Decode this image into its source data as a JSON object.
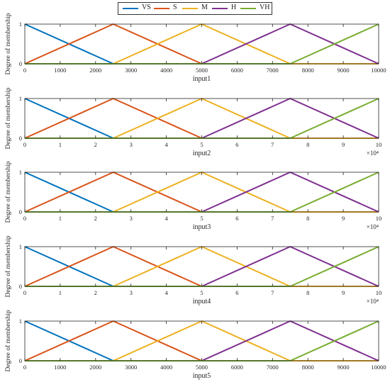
{
  "legend": {
    "entries": [
      {
        "label": "VS",
        "color": "#0072BD"
      },
      {
        "label": "S",
        "color": "#D95319"
      },
      {
        "label": "M",
        "color": "#EDB120"
      },
      {
        "label": "H",
        "color": "#7E2F8E"
      },
      {
        "label": "VH",
        "color": "#77AC30"
      }
    ],
    "placement": "top-center"
  },
  "chart_data": [
    {
      "type": "line",
      "xlabel": "input1",
      "ylabel": "Degree of membership",
      "xlim": [
        0,
        10000
      ],
      "ylim": [
        0,
        1
      ],
      "xticks": [
        "0",
        "1000",
        "2000",
        "3000",
        "4000",
        "5000",
        "6000",
        "7000",
        "8000",
        "9000",
        "10000"
      ],
      "yticks": [
        "0",
        "1"
      ],
      "exponent": "",
      "series": [
        {
          "name": "VS",
          "x": [
            0,
            2500,
            10000
          ],
          "y": [
            1,
            0,
            0
          ]
        },
        {
          "name": "S",
          "x": [
            0,
            2500,
            5000,
            10000
          ],
          "y": [
            0,
            1,
            0,
            0
          ]
        },
        {
          "name": "M",
          "x": [
            0,
            2500,
            5000,
            7500,
            10000
          ],
          "y": [
            0,
            0,
            1,
            0,
            0
          ]
        },
        {
          "name": "H",
          "x": [
            0,
            5000,
            7500,
            10000
          ],
          "y": [
            0,
            0,
            1,
            0
          ]
        },
        {
          "name": "VH",
          "x": [
            0,
            7500,
            10000
          ],
          "y": [
            0,
            0,
            1
          ]
        }
      ]
    },
    {
      "type": "line",
      "xlabel": "input2",
      "ylabel": "Degree of membership",
      "xlim": [
        0,
        10
      ],
      "ylim": [
        0,
        1
      ],
      "xticks": [
        "0",
        "1",
        "2",
        "3",
        "4",
        "5",
        "6",
        "7",
        "8",
        "9",
        "10"
      ],
      "yticks": [
        "0",
        "1"
      ],
      "exponent": "×10⁴",
      "series": [
        {
          "name": "VS",
          "x": [
            0,
            2.5,
            10
          ],
          "y": [
            1,
            0,
            0
          ]
        },
        {
          "name": "S",
          "x": [
            0,
            2.5,
            5,
            10
          ],
          "y": [
            0,
            1,
            0,
            0
          ]
        },
        {
          "name": "M",
          "x": [
            0,
            2.5,
            5,
            7.5,
            10
          ],
          "y": [
            0,
            0,
            1,
            0,
            0
          ]
        },
        {
          "name": "H",
          "x": [
            0,
            5,
            7.5,
            10
          ],
          "y": [
            0,
            0,
            1,
            0
          ]
        },
        {
          "name": "VH",
          "x": [
            0,
            7.5,
            10
          ],
          "y": [
            0,
            0,
            1
          ]
        }
      ]
    },
    {
      "type": "line",
      "xlabel": "input3",
      "ylabel": "Degree of membership",
      "xlim": [
        0,
        10
      ],
      "ylim": [
        0,
        1
      ],
      "xticks": [
        "0",
        "1",
        "2",
        "3",
        "4",
        "5",
        "6",
        "7",
        "8",
        "9",
        "10"
      ],
      "yticks": [
        "0",
        "1"
      ],
      "exponent": "×10⁴",
      "series": [
        {
          "name": "VS",
          "x": [
            0,
            2.5,
            10
          ],
          "y": [
            1,
            0,
            0
          ]
        },
        {
          "name": "S",
          "x": [
            0,
            2.5,
            5,
            10
          ],
          "y": [
            0,
            1,
            0,
            0
          ]
        },
        {
          "name": "M",
          "x": [
            0,
            2.5,
            5,
            7.5,
            10
          ],
          "y": [
            0,
            0,
            1,
            0,
            0
          ]
        },
        {
          "name": "H",
          "x": [
            0,
            5,
            7.5,
            10
          ],
          "y": [
            0,
            0,
            1,
            0
          ]
        },
        {
          "name": "VH",
          "x": [
            0,
            7.5,
            10
          ],
          "y": [
            0,
            0,
            1
          ]
        }
      ]
    },
    {
      "type": "line",
      "xlabel": "input4",
      "ylabel": "Degree of membership",
      "xlim": [
        0,
        10
      ],
      "ylim": [
        0,
        1
      ],
      "xticks": [
        "0",
        "1",
        "2",
        "3",
        "4",
        "5",
        "6",
        "7",
        "8",
        "9",
        "10"
      ],
      "yticks": [
        "0",
        "1"
      ],
      "exponent": "×10⁴",
      "series": [
        {
          "name": "VS",
          "x": [
            0,
            2.5,
            10
          ],
          "y": [
            1,
            0,
            0
          ]
        },
        {
          "name": "S",
          "x": [
            0,
            2.5,
            5,
            10
          ],
          "y": [
            0,
            1,
            0,
            0
          ]
        },
        {
          "name": "M",
          "x": [
            0,
            2.5,
            5,
            7.5,
            10
          ],
          "y": [
            0,
            0,
            1,
            0,
            0
          ]
        },
        {
          "name": "H",
          "x": [
            0,
            5,
            7.5,
            10
          ],
          "y": [
            0,
            0,
            1,
            0
          ]
        },
        {
          "name": "VH",
          "x": [
            0,
            7.5,
            10
          ],
          "y": [
            0,
            0,
            1
          ]
        }
      ]
    },
    {
      "type": "line",
      "xlabel": "input5",
      "ylabel": "Degree of membership",
      "xlim": [
        0,
        10000
      ],
      "ylim": [
        0,
        1
      ],
      "xticks": [
        "0",
        "1000",
        "2000",
        "3000",
        "4000",
        "5000",
        "6000",
        "7000",
        "8000",
        "9000",
        "10000"
      ],
      "yticks": [
        "0",
        "1"
      ],
      "exponent": "",
      "series": [
        {
          "name": "VS",
          "x": [
            0,
            2500,
            10000
          ],
          "y": [
            1,
            0,
            0
          ]
        },
        {
          "name": "S",
          "x": [
            0,
            2500,
            5000,
            10000
          ],
          "y": [
            0,
            1,
            0,
            0
          ]
        },
        {
          "name": "M",
          "x": [
            0,
            2500,
            5000,
            7500,
            10000
          ],
          "y": [
            0,
            0,
            1,
            0,
            0
          ]
        },
        {
          "name": "H",
          "x": [
            0,
            5000,
            7500,
            10000
          ],
          "y": [
            0,
            0,
            1,
            0
          ]
        },
        {
          "name": "VH",
          "x": [
            0,
            7500,
            10000
          ],
          "y": [
            0,
            0,
            1
          ]
        }
      ]
    }
  ]
}
